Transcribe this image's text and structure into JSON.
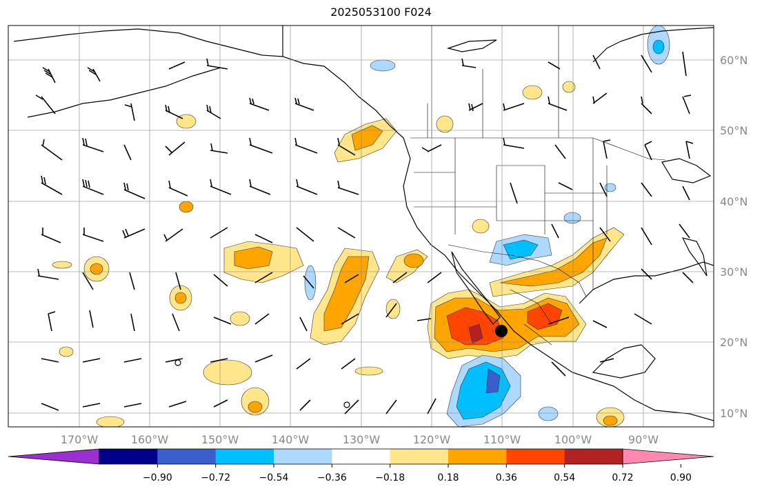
{
  "title": "2025053100 F024",
  "map": {
    "longitude_labels": [
      "170°W",
      "160°W",
      "150°W",
      "140°W",
      "130°W",
      "120°W",
      "110°W",
      "100°W",
      "90°W"
    ],
    "latitude_labels": [
      "10°N",
      "20°N",
      "30°N",
      "40°N",
      "50°N",
      "60°N"
    ],
    "grid": true
  },
  "colorbar": {
    "tick_labels": [
      "−0.90",
      "−0.72",
      "−0.54",
      "−0.36",
      "−0.18",
      "0.18",
      "0.36",
      "0.54",
      "0.72",
      "0.90"
    ],
    "colors": [
      "#9b30d0",
      "#00008b",
      "#3a5fcd",
      "#00bfff",
      "#add8ff",
      "#ffffff",
      "#ffe68a",
      "#ffa500",
      "#ff4500",
      "#b22222",
      "#ff88b0"
    ],
    "extend": "both"
  },
  "marker": {
    "label": "filled circle near 110°W 22°N"
  }
}
